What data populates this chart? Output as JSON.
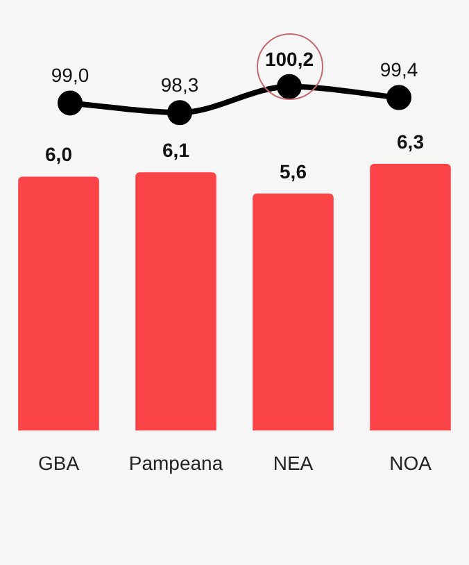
{
  "chart_data": [
    {
      "type": "line",
      "categories": [
        null,
        null,
        null,
        null
      ],
      "values": [
        99.0,
        98.3,
        100.2,
        99.4
      ],
      "color": "#000000",
      "value_labels": [
        "99,0",
        "98,3",
        "100,2",
        "99,4"
      ],
      "marker": "circle",
      "line_style": "solid",
      "tick_labels": false
    },
    {
      "type": "bar",
      "categories": [
        "GBA",
        "Pampeana",
        "NEA",
        "NOA"
      ],
      "values": [
        6.0,
        6.1,
        5.6,
        6.3
      ],
      "color": "#fb4447",
      "value_labels": [
        "6,0",
        "6,1",
        "5,6",
        "6,3"
      ],
      "tick_labels": "x"
    }
  ]
}
